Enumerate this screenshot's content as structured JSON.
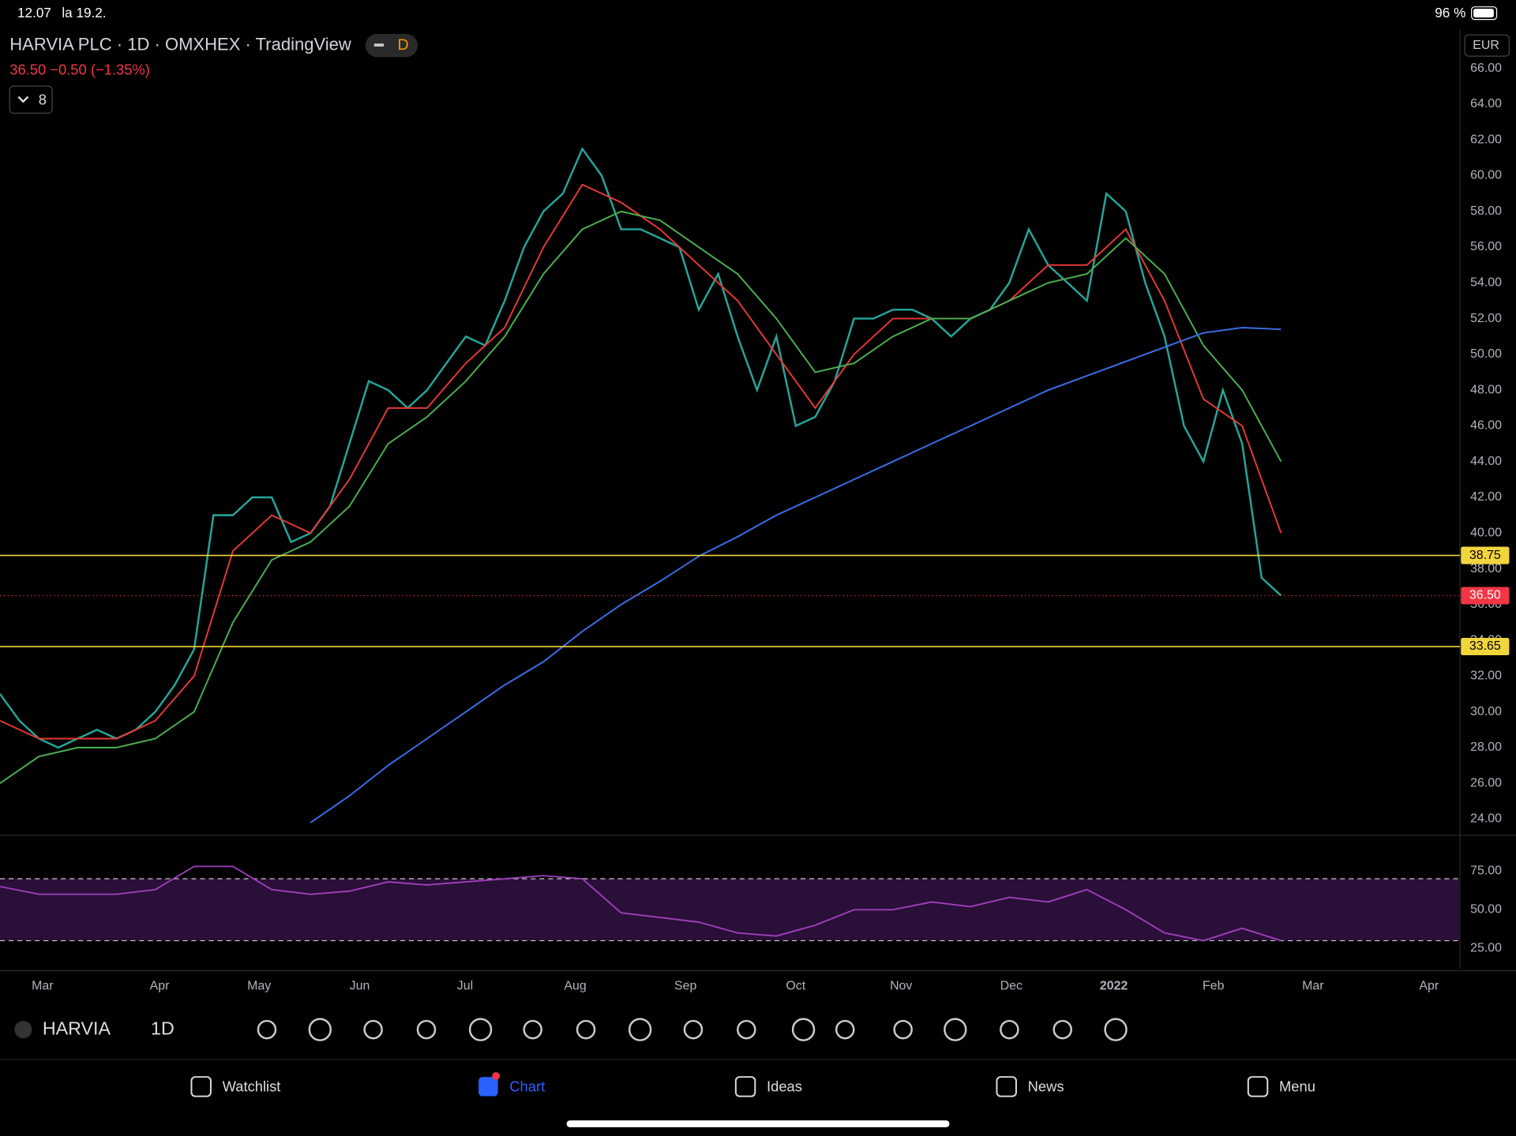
{
  "status_bar": {
    "time": "12.07",
    "date": "la 19.2.",
    "battery": "96 %"
  },
  "header": {
    "symbol": "HARVIA PLC · 1D · OMXHEX · TradingView",
    "badge": "D",
    "quote": "36.50 −0.50 (−1.35%)",
    "indicators_count": "8",
    "currency": "EUR"
  },
  "chart_data": {
    "type": "line",
    "x_labels": [
      "Mar",
      "Apr",
      "May",
      "Jun",
      "Jul",
      "Aug",
      "Sep",
      "Oct",
      "Nov",
      "Dec",
      "2022",
      "Feb",
      "Mar",
      "Apr"
    ],
    "ylim": [
      23.2,
      68.2
    ],
    "yticks": [
      {
        "value": 24,
        "label": "24.00"
      },
      {
        "value": 26,
        "label": "26.00"
      },
      {
        "value": 28,
        "label": "28.00"
      },
      {
        "value": 30,
        "label": "30.00"
      },
      {
        "value": 32,
        "label": "32.00"
      },
      {
        "value": 34,
        "label": "34.00"
      },
      {
        "value": 36,
        "label": "36.00"
      },
      {
        "value": 38,
        "label": "38.00"
      },
      {
        "value": 40,
        "label": "40.00"
      },
      {
        "value": 42,
        "label": "42.00"
      },
      {
        "value": 44,
        "label": "44.00"
      },
      {
        "value": 46,
        "label": "46.00"
      },
      {
        "value": 48,
        "label": "48.00"
      },
      {
        "value": 50,
        "label": "50.00"
      },
      {
        "value": 52,
        "label": "52.00"
      },
      {
        "value": 54,
        "label": "54.00"
      },
      {
        "value": 56,
        "label": "56.00"
      },
      {
        "value": 58,
        "label": "58.00"
      },
      {
        "value": 60,
        "label": "60.00"
      },
      {
        "value": 62,
        "label": "62.00"
      },
      {
        "value": 64,
        "label": "64.00"
      },
      {
        "value": 66,
        "label": "66.00"
      }
    ],
    "series": [
      {
        "color": "#26a69a",
        "values": [
          31,
          29.5,
          28.5,
          28,
          28.5,
          29,
          28.5,
          29,
          30,
          31.5,
          33.5,
          41,
          41,
          42,
          42,
          39.5,
          40,
          41.5,
          45,
          48.5,
          48,
          47,
          48,
          49.5,
          51,
          50.5,
          53,
          56,
          58,
          59,
          61.5,
          60,
          57,
          57,
          56.5,
          56,
          52.5,
          54.5,
          51,
          48,
          51,
          46,
          46.5,
          48.5,
          52,
          52,
          52.5,
          52.5,
          52,
          51,
          52,
          52.5,
          54,
          57,
          55,
          54,
          53,
          59,
          58,
          54,
          51,
          46,
          44,
          48,
          45,
          37.5,
          36.5
        ]
      },
      {
        "color": "#e53935",
        "values": [
          29.5,
          28.5,
          28.5,
          28.5,
          29.5,
          32,
          39,
          41,
          40,
          43,
          47,
          47,
          49.5,
          51.5,
          56,
          59.5,
          58.5,
          57,
          55,
          53,
          50,
          47,
          50,
          52,
          52,
          52,
          53,
          55,
          55,
          57,
          53,
          47.5,
          46,
          40
        ]
      },
      {
        "color": "#4caf50",
        "values": [
          26,
          27.5,
          28,
          28,
          28.5,
          30,
          35,
          38.5,
          39.5,
          41.5,
          45,
          46.5,
          48.5,
          51,
          54.5,
          57,
          58,
          57.5,
          56,
          54.5,
          52,
          49,
          49.5,
          51,
          52,
          52,
          53,
          54,
          54.5,
          56.5,
          54.5,
          50.5,
          48,
          44
        ]
      },
      {
        "color": "#3a6ee8",
        "values": [
          null,
          null,
          null,
          null,
          null,
          null,
          null,
          null,
          23.8,
          25.3,
          27,
          28.5,
          30,
          31.5,
          32.8,
          34.5,
          36,
          37.3,
          38.7,
          39.8,
          41,
          42,
          43,
          44,
          45,
          46,
          47,
          48,
          48.8,
          49.6,
          50.4,
          51.2,
          51.5,
          51.4
        ]
      }
    ],
    "levels": [
      {
        "value": 38.75,
        "label": "38.75",
        "color": "#f2d43d"
      },
      {
        "value": 33.65,
        "label": "33.65",
        "color": "#f2d43d"
      }
    ],
    "last_price": {
      "value": 36.5,
      "label": "36.50",
      "color": "#f23645"
    },
    "rsi": {
      "color": "#a33fbf",
      "ylim": [
        11.9,
        95.6
      ],
      "bands": [
        30,
        70
      ],
      "yticks": [
        {
          "value": 25,
          "label": "25.00"
        },
        {
          "value": 50,
          "label": "50.00"
        },
        {
          "value": 75,
          "label": "75.00"
        }
      ],
      "values": [
        65,
        60,
        60,
        60,
        63,
        78,
        78,
        63,
        60,
        62,
        68,
        66,
        68,
        70,
        72,
        70,
        48,
        45,
        42,
        35,
        33,
        40,
        50,
        50,
        55,
        52,
        58,
        55,
        63,
        50,
        35,
        30,
        38,
        30
      ]
    }
  },
  "toolbar": {
    "symbol": "HARVIA",
    "interval": "1D"
  },
  "nav": {
    "items": [
      "Watchlist",
      "Chart",
      "Ideas",
      "News",
      "Menu"
    ]
  }
}
